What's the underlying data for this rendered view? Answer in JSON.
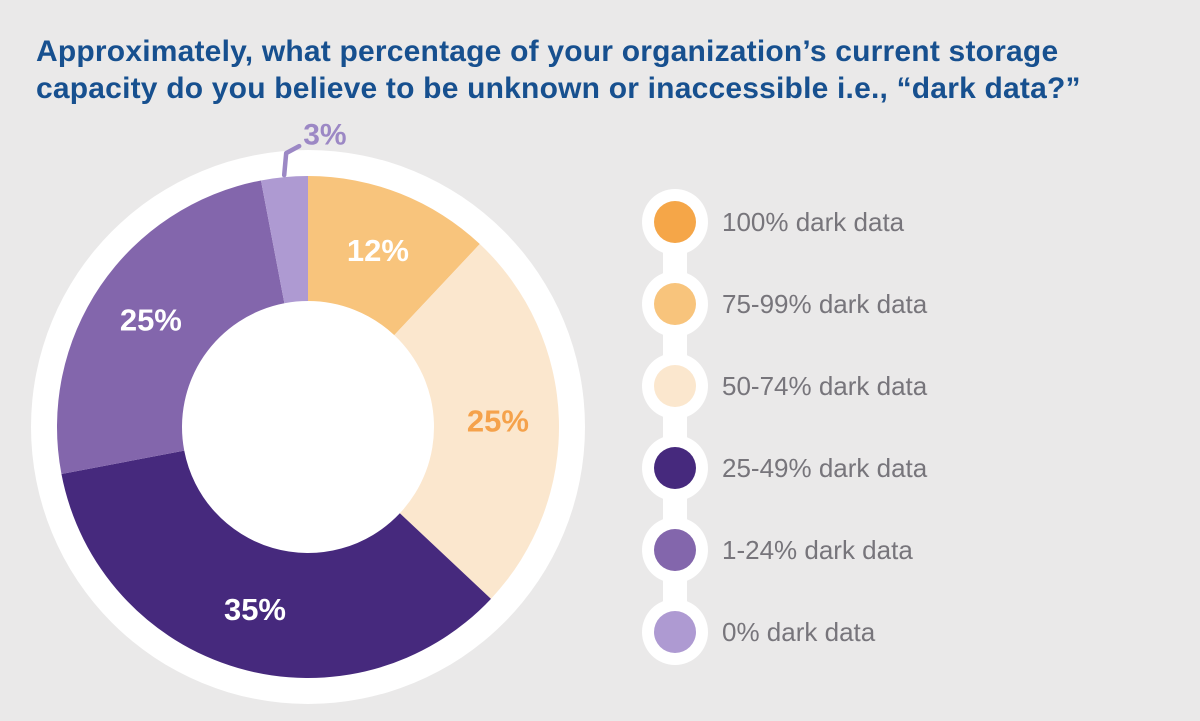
{
  "title": {
    "line1": "Approximately, what percentage of your organization’s current storage",
    "line2": "capacity do you believe to be unknown or inaccessible i.e., “dark data?”"
  },
  "colors": {
    "background": "#EAE9E9",
    "title_text": "#17508F",
    "legend_text": "#77757B",
    "ring_white": "#FFFFFF",
    "outside_label": "#9C88C5"
  },
  "chart_data": {
    "type": "pie",
    "subtype": "donut",
    "title": "Approximately, what percentage of your organization’s current storage capacity do you believe to be unknown or inaccessible i.e., “dark data?”",
    "unit": "%",
    "start_angle_deg": 0,
    "clockwise": true,
    "legend_position": "right",
    "slices": [
      {
        "label": "75-99% dark data",
        "value": 12,
        "display": "12%",
        "color": "#F8C47C",
        "label_color": "#FFFFFF",
        "label_inside": true
      },
      {
        "label": "50-74% dark data",
        "value": 25,
        "display": "25%",
        "color": "#FBE7CE",
        "label_color": "#F5A24B",
        "label_inside": true
      },
      {
        "label": "25-49% dark data",
        "value": 35,
        "display": "35%",
        "color": "#46297D",
        "label_color": "#FFFFFF",
        "label_inside": true
      },
      {
        "label": "1-24% dark data",
        "value": 25,
        "display": "25%",
        "color": "#8366AC",
        "label_color": "#FFFFFF",
        "label_inside": true
      },
      {
        "label": "0% dark data",
        "value": 3,
        "display": "3%",
        "color": "#AE9AD2",
        "label_color": "#9C88C5",
        "label_inside": false
      }
    ],
    "legend": [
      {
        "label": "100% dark data",
        "color": "#F5A648"
      },
      {
        "label": "75-99% dark data",
        "color": "#F8C47C"
      },
      {
        "label": "50-74% dark data",
        "color": "#FBE7CE"
      },
      {
        "label": "25-49% dark data",
        "color": "#46297D"
      },
      {
        "label": "1-24% dark data",
        "color": "#8366AC"
      },
      {
        "label": "0% dark data",
        "color": "#AE9AD2"
      }
    ]
  }
}
